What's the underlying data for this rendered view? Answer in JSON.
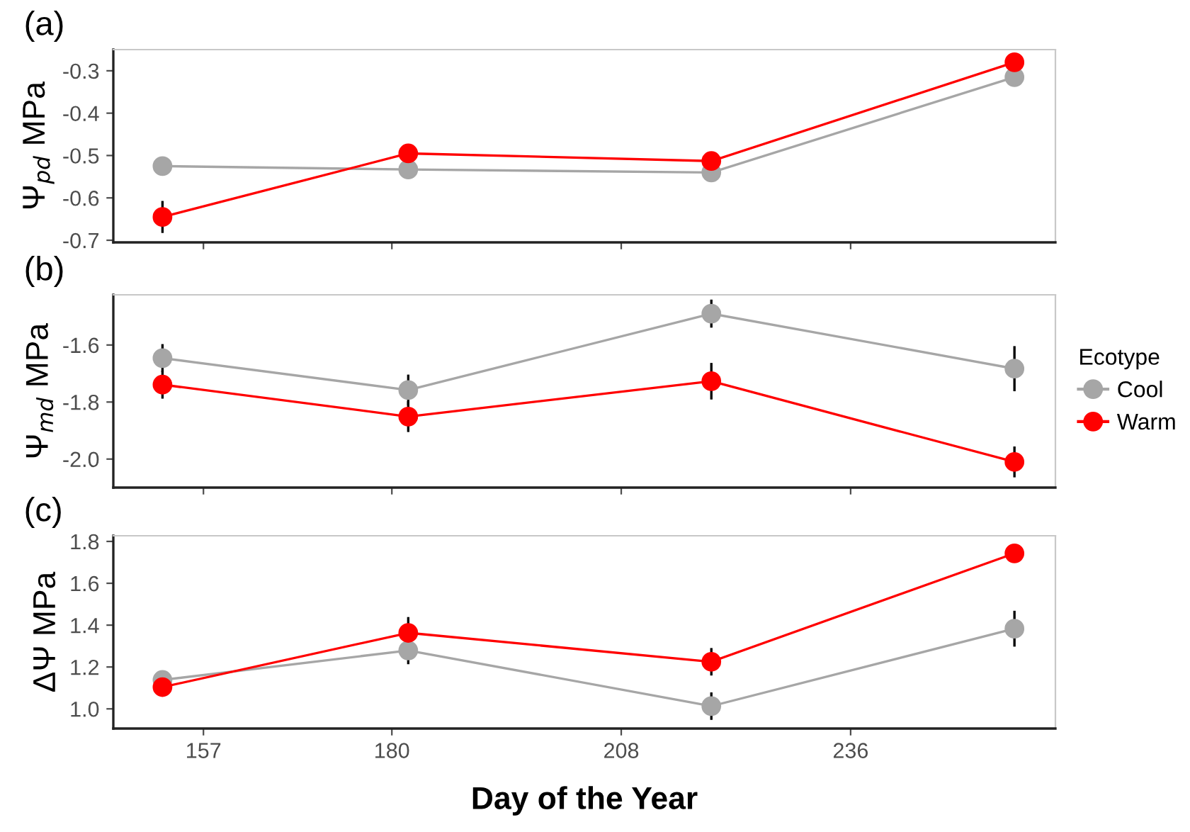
{
  "chart_data": [
    {
      "type": "line",
      "title": "(a)",
      "ylabel": "Ψ$_{pd}$ MPa",
      "x": [
        152,
        182,
        219,
        256
      ],
      "xlim": [
        146,
        261
      ],
      "xticks": [
        157,
        180,
        208,
        236
      ],
      "ylim": [
        -0.705,
        -0.25
      ],
      "yticks": [
        -0.7,
        -0.6,
        -0.5,
        -0.4,
        -0.3
      ],
      "marker": "circle",
      "grid": false,
      "legend": false,
      "tick_labels": "y",
      "series": [
        {
          "color": "#a6a6a6",
          "values": [
            -0.525,
            -0.533,
            -0.54,
            -0.315
          ]
        },
        {
          "color": "#ff0000",
          "values": [
            -0.645,
            -0.495,
            -0.513,
            -0.28
          ],
          "errors": [
            0.035,
            null,
            null,
            null
          ]
        }
      ]
    },
    {
      "type": "line",
      "title": "(b)",
      "ylabel": "Ψ$_{md}$ MPa",
      "legend_title": "Ecotype",
      "x": [
        152,
        182,
        219,
        256
      ],
      "xlim": [
        146,
        261
      ],
      "xticks": [
        157,
        180,
        208,
        236
      ],
      "ylim": [
        -2.1,
        -1.424
      ],
      "yticks": [
        {
          "value": -2.0,
          "label": "-2.0"
        },
        -1.8,
        -1.6
      ],
      "marker": "circle",
      "grid": false,
      "legend": "right",
      "tick_labels": "y",
      "series": [
        {
          "name": "Cool",
          "color": "#a6a6a6",
          "values": [
            -1.646,
            -1.758,
            -1.49,
            -1.683
          ],
          "errors": [
            0.045,
            0.05,
            0.045,
            0.075
          ]
        },
        {
          "name": "Warm",
          "color": "#ff0000",
          "values": [
            -1.739,
            -1.851,
            -1.727,
            -2.01
          ],
          "errors": [
            0.045,
            0.05,
            0.06,
            0.05
          ]
        }
      ]
    },
    {
      "type": "line",
      "title": "(c)",
      "ylabel": "ΔΨ MPa",
      "xlabel": "Day of the Year",
      "x": [
        152,
        182,
        219,
        256
      ],
      "xlim": [
        146,
        261
      ],
      "xticks": [
        157,
        180,
        208,
        236
      ],
      "ylim": [
        0.906,
        1.827
      ],
      "yticks": [
        {
          "value": 1.0,
          "label": "1.0"
        },
        1.2,
        1.4,
        1.6,
        1.8
      ],
      "marker": "circle",
      "grid": false,
      "legend": false,
      "series": [
        {
          "color": "#a6a6a6",
          "values": [
            1.138,
            1.279,
            1.013,
            1.383
          ],
          "errors": [
            null,
            0.06,
            0.06,
            0.08
          ]
        },
        {
          "color": "#ff0000",
          "values": [
            1.104,
            1.363,
            1.225,
            1.743
          ],
          "errors": [
            null,
            0.07,
            0.06,
            null
          ]
        }
      ]
    }
  ]
}
